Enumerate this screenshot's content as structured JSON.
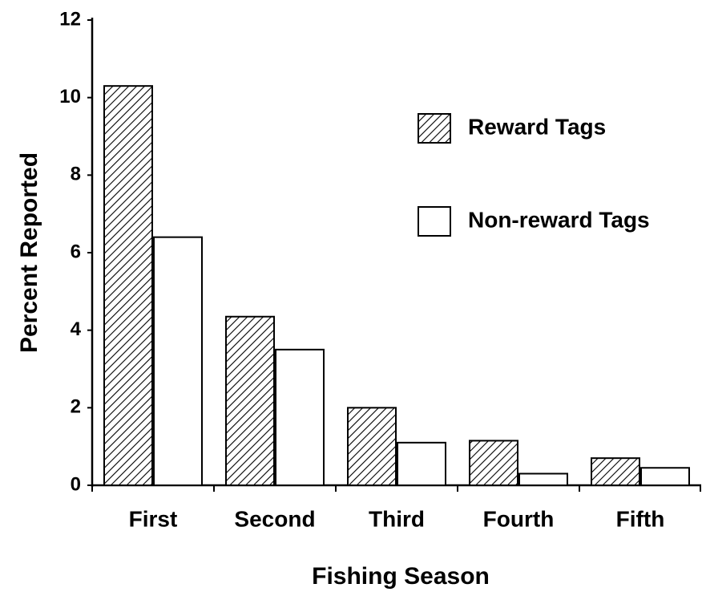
{
  "chart_data": {
    "type": "bar",
    "x_label": "Fishing Season",
    "y_label": "Percent Reported",
    "categories": [
      "First",
      "Second",
      "Third",
      "Fourth",
      "Fifth"
    ],
    "series": [
      {
        "name": "Reward Tags",
        "color": "#000000",
        "pattern": "hatch",
        "values": [
          10.3,
          4.35,
          2.0,
          1.15,
          0.7
        ]
      },
      {
        "name": "Non-reward Tags",
        "color": "#ffffff",
        "values": [
          6.4,
          3.5,
          1.1,
          0.3,
          0.45
        ]
      }
    ],
    "ylim": [
      0,
      12
    ],
    "yticks": [
      0,
      2,
      4,
      6,
      8,
      10,
      12
    ],
    "grid": false
  }
}
